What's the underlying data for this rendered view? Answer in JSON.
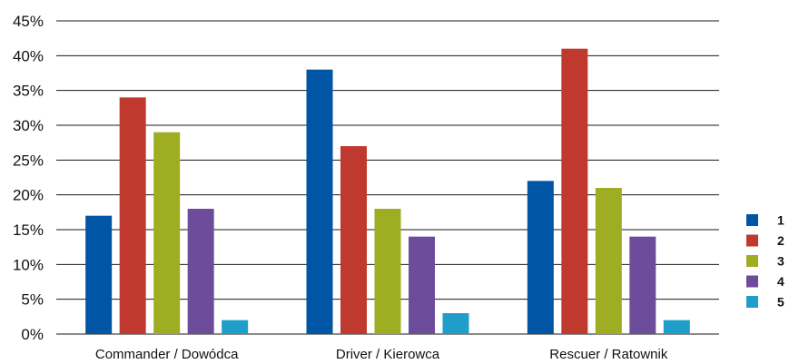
{
  "chart_data": {
    "type": "bar",
    "title": "",
    "xlabel": "",
    "ylabel": "",
    "categories": [
      "Commander / Dowódca",
      "Driver / Kierowca",
      "Rescuer / Ratownik"
    ],
    "series": [
      {
        "name": "1",
        "color": "#0055a4",
        "values": [
          17,
          38,
          22
        ]
      },
      {
        "name": "2",
        "color": "#c0392f",
        "values": [
          34,
          27,
          41
        ]
      },
      {
        "name": "3",
        "color": "#9ead22",
        "values": [
          29,
          18,
          21
        ]
      },
      {
        "name": "4",
        "color": "#6e4c9c",
        "values": [
          18,
          14,
          14
        ]
      },
      {
        "name": "5",
        "color": "#1f9ec9",
        "values": [
          2,
          3,
          2
        ]
      }
    ],
    "ylim": [
      0,
      45
    ],
    "yticks": [
      0,
      5,
      10,
      15,
      20,
      25,
      30,
      35,
      40,
      45
    ],
    "ytick_labels": [
      "0%",
      "5%",
      "10%",
      "15%",
      "20%",
      "25%",
      "30%",
      "35%",
      "40%",
      "45%"
    ],
    "grid": true,
    "legend_position": "right"
  }
}
